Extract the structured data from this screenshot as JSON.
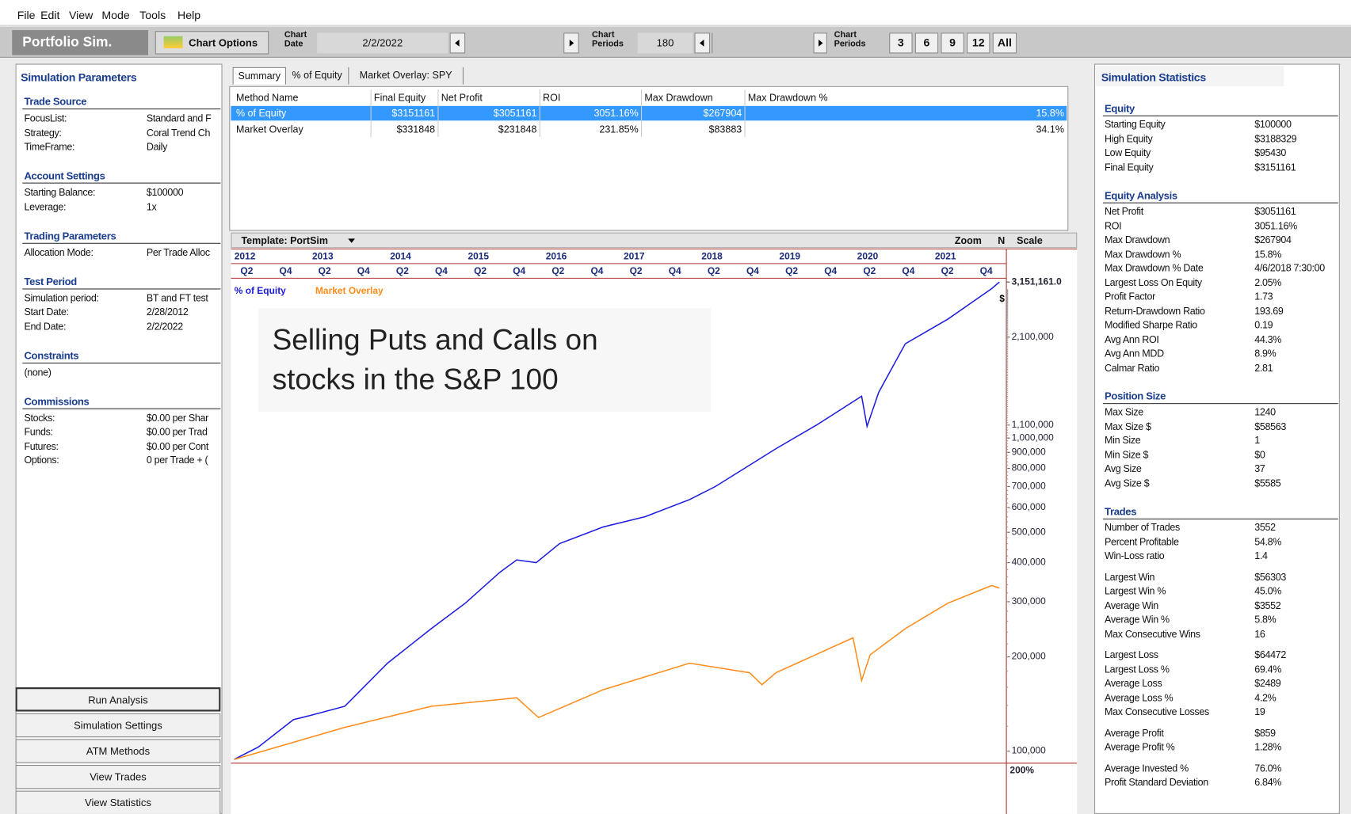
{
  "menu": [
    "File",
    "Edit",
    "View",
    "Mode",
    "Tools",
    "Help"
  ],
  "toolbar": {
    "app_title": "Portfolio Sim.",
    "chart_options": "Chart Options",
    "chart_date_label": [
      "Chart",
      "Date"
    ],
    "chart_date": "2/2/2022",
    "periods_label": [
      "Chart",
      "Periods"
    ],
    "periods": "180",
    "periods_label_2": [
      "Chart",
      "Periods"
    ],
    "period_buttons": [
      "3",
      "6",
      "9",
      "12",
      "All"
    ]
  },
  "left_panel": {
    "title": "Simulation Parameters",
    "sections": [
      {
        "title": "Trade Source",
        "rows": [
          [
            "FocusList:",
            "Standard and F"
          ],
          [
            "Strategy:",
            "Coral Trend Ch"
          ],
          [
            "TimeFrame:",
            "Daily"
          ]
        ]
      },
      {
        "title": "Account Settings",
        "rows": [
          [
            "Starting Balance:",
            "$100000"
          ],
          [
            "Leverage:",
            "1x"
          ]
        ]
      },
      {
        "title": "Trading Parameters",
        "rows": [
          [
            "Allocation Mode:",
            "Per Trade Alloc"
          ]
        ]
      },
      {
        "title": "Test Period",
        "rows": [
          [
            "Simulation period:",
            "BT and FT test"
          ],
          [
            "Start Date:",
            "2/28/2012"
          ],
          [
            "End Date:",
            "2/2/2022"
          ]
        ]
      },
      {
        "title": "Constraints",
        "rows": [
          [
            "(none)"
          ]
        ]
      },
      {
        "title": "Commissions",
        "rows": [
          [
            "Stocks:",
            "$0.00 per Shar"
          ],
          [
            "Funds:",
            "$0.00 per Trad"
          ],
          [
            "Futures:",
            "$0.00 per Cont"
          ],
          [
            "Options:",
            "0 per Trade  + ("
          ]
        ]
      }
    ],
    "buttons": [
      "Run Analysis",
      "Simulation Settings",
      "ATM Methods",
      "View Trades",
      "View Statistics"
    ]
  },
  "tabs": [
    "Summary",
    "% of Equity",
    "Market Overlay: SPY"
  ],
  "table": {
    "headers": [
      "Method Name",
      "Final Equity",
      "Net Profit",
      "ROI",
      "Max Drawdown",
      "Max Drawdown %"
    ],
    "rows": [
      [
        "% of Equity",
        "$3151161",
        "$3051161",
        "3051.16%",
        "$267904",
        "15.8%"
      ],
      [
        "Market Overlay",
        "$331848",
        "$231848",
        "231.85%",
        "$83883",
        "34.1%"
      ]
    ]
  },
  "chart_toolbar": {
    "template": "Template: PortSim",
    "zoom": "Zoom",
    "n": "N",
    "scale": "Scale"
  },
  "chart_data": {
    "type": "line",
    "annotation": "Selling Puts and Calls on stocks in the S&P 100",
    "end_marker": "$",
    "lower_panel_label": "200%",
    "xlim": [
      2012,
      2021.94
    ],
    "xticks": [
      2012,
      2013,
      2014,
      2015,
      2016,
      2017,
      2018,
      2019,
      2020,
      2021
    ],
    "quarter_ticks": [
      {
        "value": 2012.1,
        "label": "Q2"
      },
      {
        "value": 2012.6,
        "label": "Q4"
      },
      {
        "value": 2013.1,
        "label": "Q2"
      },
      {
        "value": 2013.6,
        "label": "Q4"
      },
      {
        "value": 2014.1,
        "label": "Q2"
      },
      {
        "value": 2014.6,
        "label": "Q4"
      },
      {
        "value": 2015.1,
        "label": "Q2"
      },
      {
        "value": 2015.6,
        "label": "Q4"
      },
      {
        "value": 2016.1,
        "label": "Q2"
      },
      {
        "value": 2016.6,
        "label": "Q4"
      },
      {
        "value": 2017.1,
        "label": "Q2"
      },
      {
        "value": 2017.6,
        "label": "Q4"
      },
      {
        "value": 2018.1,
        "label": "Q2"
      },
      {
        "value": 2018.6,
        "label": "Q4"
      },
      {
        "value": 2019.1,
        "label": "Q2"
      },
      {
        "value": 2019.6,
        "label": "Q4"
      },
      {
        "value": 2020.1,
        "label": "Q2"
      },
      {
        "value": 2020.6,
        "label": "Q4"
      },
      {
        "value": 2021.1,
        "label": "Q2"
      },
      {
        "value": 2021.6,
        "label": "Q4"
      }
    ],
    "ylim": [
      91500,
      3200000
    ],
    "log_scale": true,
    "yticks": [
      {
        "value": 3151161,
        "label": "3,151,161.0"
      },
      {
        "value": 2100000,
        "label": "2,100,000"
      },
      {
        "value": 1100000,
        "label": "1,100,000"
      },
      {
        "value": 1000000,
        "label": "1,000,000"
      },
      {
        "value": 900000,
        "label": "900,000"
      },
      {
        "value": 800000,
        "label": "800,000"
      },
      {
        "value": 700000,
        "label": "700,000"
      },
      {
        "value": 600000,
        "label": "600,000"
      },
      {
        "value": 500000,
        "label": "500,000"
      },
      {
        "value": 400000,
        "label": "400,000"
      },
      {
        "value": 300000,
        "label": "300,000"
      },
      {
        "value": 200000,
        "label": "200,000"
      },
      {
        "value": 100000,
        "label": "100,000"
      }
    ],
    "series": [
      {
        "name": "% of Equity",
        "color": "#1c1ce0",
        "x": [
          2012.02,
          2012.33,
          2012.78,
          2013.0,
          2013.44,
          2013.99,
          2014.55,
          2014.99,
          2015.43,
          2015.65,
          2015.9,
          2016.2,
          2016.76,
          2017.3,
          2017.87,
          2018.2,
          2018.64,
          2018.98,
          2019.5,
          2020.08,
          2020.15,
          2020.3,
          2020.64,
          2021.19,
          2021.75,
          2021.85
        ],
        "values": [
          94000,
          103000,
          126000,
          130000,
          139000,
          191000,
          246000,
          297000,
          372000,
          408000,
          400000,
          460000,
          520000,
          561000,
          636000,
          700000,
          819000,
          925000,
          1100000,
          1360000,
          1090000,
          1400000,
          2000000,
          2400000,
          3000000,
          3151161
        ]
      },
      {
        "name": "Market Overlay",
        "color": "#ff8c1a",
        "x": [
          2012.02,
          2013.44,
          2014.55,
          2015.65,
          2015.93,
          2016.76,
          2017.87,
          2018.64,
          2018.8,
          2018.98,
          2019.97,
          2020.08,
          2020.19,
          2020.64,
          2021.19,
          2021.75,
          2021.85
        ],
        "values": [
          94000,
          119000,
          139000,
          148000,
          128000,
          157000,
          191000,
          178000,
          163000,
          178000,
          230000,
          168000,
          203000,
          246000,
          297000,
          338000,
          331848
        ]
      }
    ]
  },
  "right_panel": {
    "title": "Simulation Statistics",
    "sections": [
      {
        "title": "Equity",
        "groups": [
          [
            [
              "Starting Equity",
              "$100000"
            ],
            [
              "High Equity",
              "$3188329"
            ],
            [
              "Low Equity",
              "$95430"
            ],
            [
              "Final Equity",
              "$3151161"
            ]
          ]
        ]
      },
      {
        "title": "Equity Analysis",
        "groups": [
          [
            [
              "Net Profit",
              "$3051161"
            ],
            [
              "ROI",
              "3051.16%"
            ],
            [
              "Max Drawdown",
              "$267904"
            ],
            [
              "Max Drawdown %",
              "15.8%"
            ],
            [
              "Max Drawdown % Date",
              "4/6/2018 7:30:00"
            ],
            [
              "Largest Loss On Equity",
              "2.05%"
            ],
            [
              "Profit Factor",
              "1.73"
            ],
            [
              "Return-Drawdown Ratio",
              "193.69"
            ],
            [
              "Modified Sharpe Ratio",
              "0.19"
            ],
            [
              "Avg Ann ROI",
              "44.3%"
            ],
            [
              "Avg Ann MDD",
              "8.9%"
            ],
            [
              "Calmar Ratio",
              "2.81"
            ]
          ]
        ]
      },
      {
        "title": "Position Size",
        "groups": [
          [
            [
              "Max Size",
              "1240"
            ],
            [
              "Max Size $",
              "$58563"
            ],
            [
              "Min Size",
              "1"
            ],
            [
              "Min Size $",
              "$0"
            ],
            [
              "Avg Size",
              "37"
            ],
            [
              "Avg Size $",
              "$5585"
            ]
          ]
        ]
      },
      {
        "title": "Trades",
        "groups": [
          [
            [
              "Number of Trades",
              "3552"
            ],
            [
              "Percent Profitable",
              "54.8%"
            ],
            [
              "Win-Loss ratio",
              "1.4"
            ]
          ],
          [
            [
              "Largest Win",
              "$56303"
            ],
            [
              "Largest Win %",
              "45.0%"
            ],
            [
              "Average Win",
              "$3552"
            ],
            [
              "Average Win %",
              "5.8%"
            ],
            [
              "Max Consecutive Wins",
              "16"
            ]
          ],
          [
            [
              "Largest Loss",
              "$64472"
            ],
            [
              "Largest Loss %",
              "69.4%"
            ],
            [
              "Average Loss",
              "$2489"
            ],
            [
              "Average Loss %",
              "4.2%"
            ],
            [
              "Max Consecutive Losses",
              "19"
            ]
          ],
          [
            [
              "Average Profit",
              "$859"
            ],
            [
              "Average Profit %",
              "1.28%"
            ]
          ],
          [
            [
              "Average Invested %",
              "76.0%"
            ],
            [
              "Profit Standard Deviation",
              "6.84%"
            ]
          ]
        ]
      }
    ]
  }
}
